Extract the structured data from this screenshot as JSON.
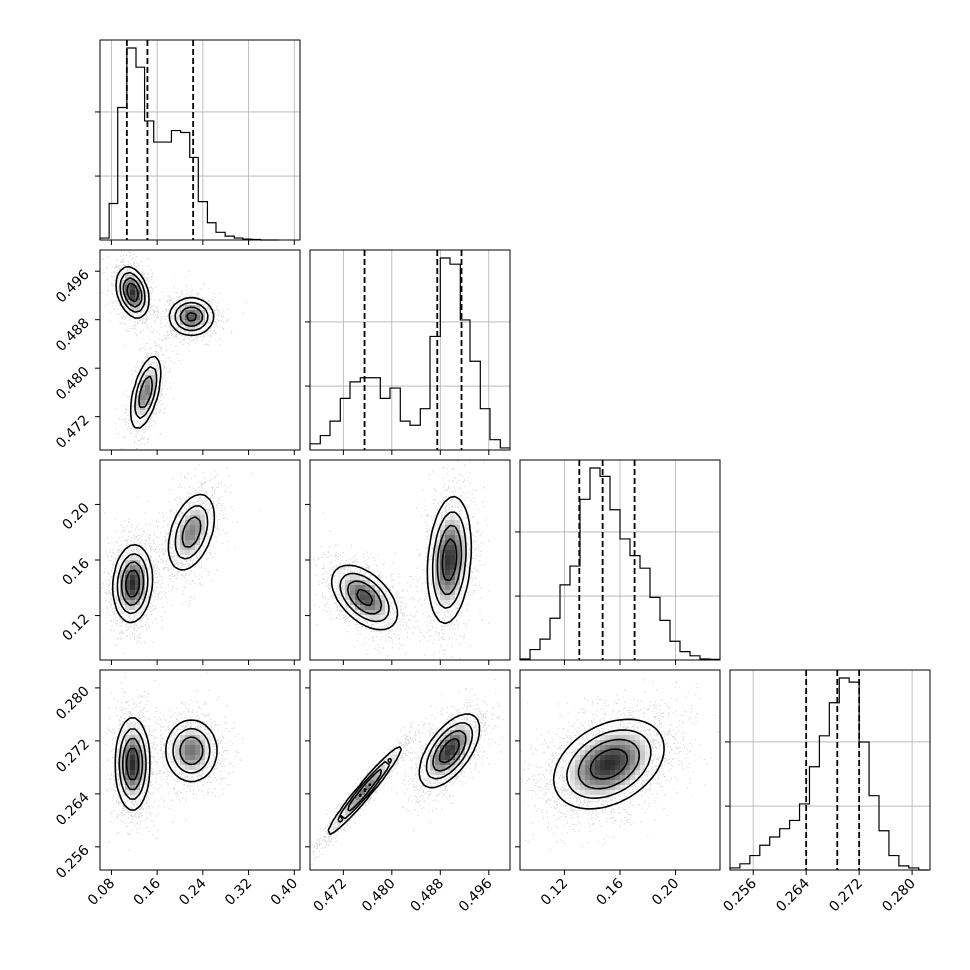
{
  "chart_data": {
    "type": "corner",
    "title": "",
    "parameters": [
      {
        "name": "",
        "ticks": [
          0.08,
          0.16,
          0.24,
          0.32,
          0.4
        ],
        "tick_labels": [
          "0.08",
          "0.16",
          "0.24",
          "0.32",
          "0.40"
        ],
        "range": [
          0.06,
          0.41
        ]
      },
      {
        "name": "",
        "ticks": [
          0.472,
          0.48,
          0.488,
          0.496
        ],
        "tick_labels": [
          "0.472",
          "0.480",
          "0.488",
          "0.496"
        ],
        "range": [
          0.4665,
          0.4995
        ]
      },
      {
        "name": "",
        "ticks": [
          0.12,
          0.16,
          0.2
        ],
        "tick_labels": [
          "0.12",
          "0.16",
          "0.20"
        ],
        "range": [
          0.088,
          0.232
        ]
      },
      {
        "name": "",
        "ticks": [
          0.256,
          0.264,
          0.272,
          0.28
        ],
        "tick_labels": [
          "0.256",
          "0.264",
          "0.272",
          "0.280"
        ],
        "range": [
          0.2525,
          0.2827
        ]
      }
    ],
    "histograms": [
      {
        "param": 0,
        "quantiles": [
          0.107,
          0.143,
          0.223
        ],
        "bin_edges": [
          0.06,
          0.076,
          0.091,
          0.107,
          0.123,
          0.138,
          0.154,
          0.17,
          0.185,
          0.201,
          0.217,
          0.232,
          0.248,
          0.263,
          0.279,
          0.295,
          0.31,
          0.326,
          0.341,
          0.357,
          0.372
        ],
        "counts": [
          1,
          19,
          69,
          100,
          90,
          62,
          51,
          51,
          57,
          56,
          43,
          20,
          9,
          4,
          2,
          1,
          0.5,
          0.3,
          0,
          0
        ]
      },
      {
        "param": 1,
        "quantiles": [
          0.4755,
          0.4875,
          0.4915
        ],
        "bin_edges": [
          0.4665,
          0.4682,
          0.4698,
          0.4715,
          0.4731,
          0.4748,
          0.4764,
          0.4781,
          0.4797,
          0.4814,
          0.483,
          0.4847,
          0.4863,
          0.488,
          0.4896,
          0.4913,
          0.4929,
          0.4946,
          0.4962,
          0.4979,
          0.4995
        ],
        "counts": [
          3,
          7,
          14,
          25,
          33,
          35,
          35,
          25,
          30,
          14,
          12,
          20,
          55,
          93,
          90,
          63,
          43,
          20,
          5,
          1
        ]
      },
      {
        "param": 2,
        "quantiles": [
          0.1307,
          0.1475,
          0.1705
        ],
        "bin_edges": [
          0.088,
          0.0952,
          0.1024,
          0.1096,
          0.1168,
          0.124,
          0.1312,
          0.1384,
          0.1456,
          0.1528,
          0.16,
          0.1672,
          0.1744,
          0.1816,
          0.1888,
          0.196,
          0.2032,
          0.2104,
          0.2176,
          0.2248,
          0.232
        ],
        "counts": [
          0.5,
          5,
          10,
          20,
          36,
          45,
          77,
          92,
          88,
          72,
          58,
          50,
          44,
          30,
          19,
          9,
          4,
          2,
          0.5,
          0.3
        ]
      },
      {
        "param": 3,
        "quantiles": [
          0.264,
          0.2687,
          0.272
        ],
        "bin_edges": [
          0.2525,
          0.254,
          0.2555,
          0.257,
          0.2585,
          0.26,
          0.2615,
          0.263,
          0.2645,
          0.266,
          0.2675,
          0.269,
          0.2705,
          0.272,
          0.2735,
          0.275,
          0.2765,
          0.278,
          0.2795,
          0.281,
          0.2825
        ],
        "counts": [
          1,
          3,
          7,
          12,
          16,
          20,
          24,
          32,
          50,
          65,
          81,
          93,
          91,
          62,
          36,
          19,
          7,
          2,
          1,
          0
        ]
      }
    ],
    "pairs": [
      {
        "x_param": 0,
        "y_param": 1,
        "modes": [
          {
            "x": 0.117,
            "y": 0.4925,
            "sx": 0.014,
            "sy": 0.0021,
            "rho": -0.3,
            "w": 1.0
          },
          {
            "x": 0.22,
            "y": 0.4885,
            "sx": 0.02,
            "sy": 0.0016,
            "rho": 0.0,
            "w": 0.85
          },
          {
            "x": 0.14,
            "y": 0.476,
            "sx": 0.014,
            "sy": 0.0032,
            "rho": 0.55,
            "w": 0.75
          }
        ]
      },
      {
        "x_param": 0,
        "y_param": 2,
        "modes": [
          {
            "x": 0.117,
            "y": 0.143,
            "sx": 0.017,
            "sy": 0.014,
            "rho": 0.1,
            "w": 1.0
          },
          {
            "x": 0.22,
            "y": 0.18,
            "sx": 0.022,
            "sy": 0.015,
            "rho": 0.4,
            "w": 0.7
          }
        ]
      },
      {
        "x_param": 1,
        "y_param": 2,
        "modes": [
          {
            "x": 0.4755,
            "y": 0.133,
            "sx": 0.0028,
            "sy": 0.012,
            "rho": -0.5,
            "w": 0.9
          },
          {
            "x": 0.4895,
            "y": 0.16,
            "sx": 0.0018,
            "sy": 0.023,
            "rho": 0.2,
            "w": 1.0
          }
        ]
      },
      {
        "x_param": 0,
        "y_param": 3,
        "modes": [
          {
            "x": 0.117,
            "y": 0.2685,
            "sx": 0.015,
            "sy": 0.0035,
            "rho": 0.0,
            "w": 1.0
          },
          {
            "x": 0.22,
            "y": 0.2705,
            "sx": 0.024,
            "sy": 0.0025,
            "rho": 0.0,
            "w": 0.75
          }
        ]
      },
      {
        "x_param": 1,
        "y_param": 3,
        "modes": [
          {
            "x": 0.4755,
            "y": 0.2645,
            "sx": 0.0032,
            "sy": 0.0035,
            "rho": 0.97,
            "w": 0.9
          },
          {
            "x": 0.4895,
            "y": 0.2705,
            "sx": 0.0025,
            "sy": 0.0028,
            "rho": 0.6,
            "w": 1.0
          }
        ]
      },
      {
        "x_param": 2,
        "y_param": 3,
        "modes": [
          {
            "x": 0.152,
            "y": 0.2685,
            "sx": 0.02,
            "sy": 0.0034,
            "rho": 0.35,
            "w": 1.0
          }
        ]
      }
    ]
  }
}
